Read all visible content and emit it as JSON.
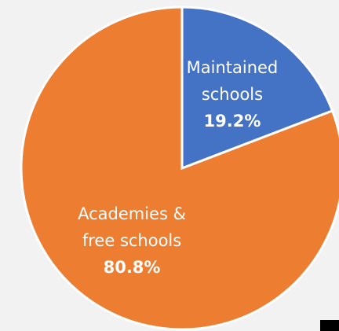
{
  "chart_data": {
    "type": "pie",
    "categories": [
      "Maintained\nschools",
      "Academies &\nfree schools"
    ],
    "values": [
      19.2,
      80.8
    ],
    "value_labels": [
      "19.2%",
      "80.8%"
    ],
    "colors": [
      "#4472c4",
      "#ed7d31"
    ]
  }
}
